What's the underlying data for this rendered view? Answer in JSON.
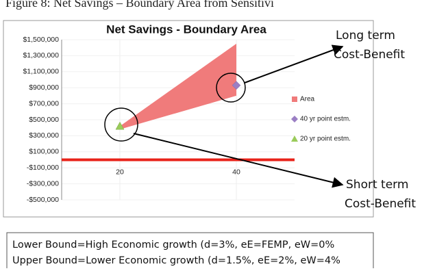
{
  "caption": "Figure 8: Net Savings – Boundary Area from Sensitivi",
  "chart_data": {
    "type": "area-scatter",
    "title": "Net Savings - Boundary Area",
    "xlim": [
      10,
      50
    ],
    "xticks": [
      20,
      40
    ],
    "ylim": [
      -500000,
      1500000
    ],
    "yticks": [
      {
        "value": -500000,
        "label": "-$500,000"
      },
      {
        "value": -300000,
        "label": "-$300,000"
      },
      {
        "value": -100000,
        "label": "-$100,000"
      },
      {
        "value": 100000,
        "label": "$100,000"
      },
      {
        "value": 300000,
        "label": "$300,000"
      },
      {
        "value": 500000,
        "label": "$500,000"
      },
      {
        "value": 700000,
        "label": "$700,000"
      },
      {
        "value": 900000,
        "label": "$900,000"
      },
      {
        "value": 1100000,
        "label": "$1,100,000"
      },
      {
        "value": 1300000,
        "label": "$1,300,000"
      },
      {
        "value": 1500000,
        "label": "$1,500,000"
      }
    ],
    "grid": true,
    "reference_line": {
      "value": 0,
      "color": "#e8231a"
    },
    "series": [
      {
        "name": "Area",
        "kind": "band",
        "color": "#f07b7b",
        "x": [
          20,
          40
        ],
        "low": [
          380000,
          800000
        ],
        "high": [
          420000,
          1450000
        ]
      },
      {
        "name": "40 yr point estm.",
        "kind": "diamond",
        "color": "#9b7fc4",
        "x": [
          40
        ],
        "values": [
          930000
        ]
      },
      {
        "name": "20 yr point estm.",
        "kind": "triangle",
        "color": "#9acb5a",
        "x": [
          20
        ],
        "values": [
          420000
        ]
      }
    ],
    "annotations": [
      "Long term",
      "Cost-Benefit",
      "Short term",
      "Cost-Benefit"
    ]
  },
  "note": [
    "Lower Bound=High Economic growth (d=3%, eE=FEMP, eW=0%",
    "Upper Bound=Lower Economic growth (d=1.5%, eE=2%, eW=4%"
  ]
}
